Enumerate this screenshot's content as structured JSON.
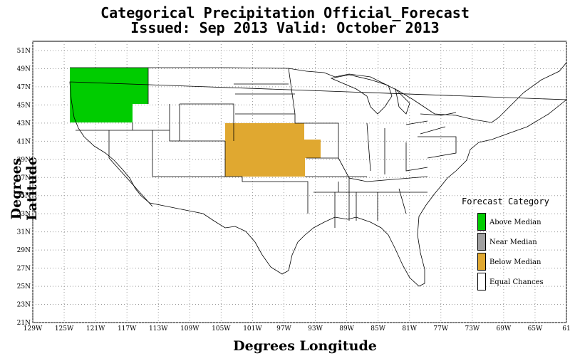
{
  "title_line1": "Categorical Precipitation Official_Forecast",
  "title_line2": "Issued: Sep 2013 Valid: October 2013",
  "x_axis_title": "Degrees Longitude",
  "y_axis_title": "Degrees Latitude",
  "lon_ticks": [
    "129W",
    "125W",
    "121W",
    "117W",
    "113W",
    "109W",
    "105W",
    "101W",
    "97W",
    "93W",
    "89W",
    "85W",
    "81W",
    "77W",
    "73W",
    "69W",
    "65W",
    "61"
  ],
  "lat_ticks": [
    "51N",
    "49N",
    "47N",
    "45N",
    "43N",
    "41N",
    "39N",
    "37N",
    "35N",
    "33N",
    "31N",
    "29N",
    "27N",
    "25N",
    "23N",
    "21N"
  ],
  "legend": {
    "title": "Forecast Category",
    "items": [
      {
        "label": "Above Median",
        "color": "#00cc00"
      },
      {
        "label": "Near Median",
        "color": "#a0a0a0"
      },
      {
        "label": "Below Median",
        "color": "#e0a830"
      },
      {
        "label": "Equal Chances",
        "color": "#ffffff"
      }
    ]
  },
  "colors": {
    "above": "#00cc00",
    "below": "#e0a830",
    "grid": "#9a9a9a",
    "border": "#000000"
  },
  "regions": [
    {
      "name": "Pacific Northwest",
      "category": "Above Median"
    },
    {
      "name": "Central Plains",
      "category": "Below Median"
    }
  ]
}
